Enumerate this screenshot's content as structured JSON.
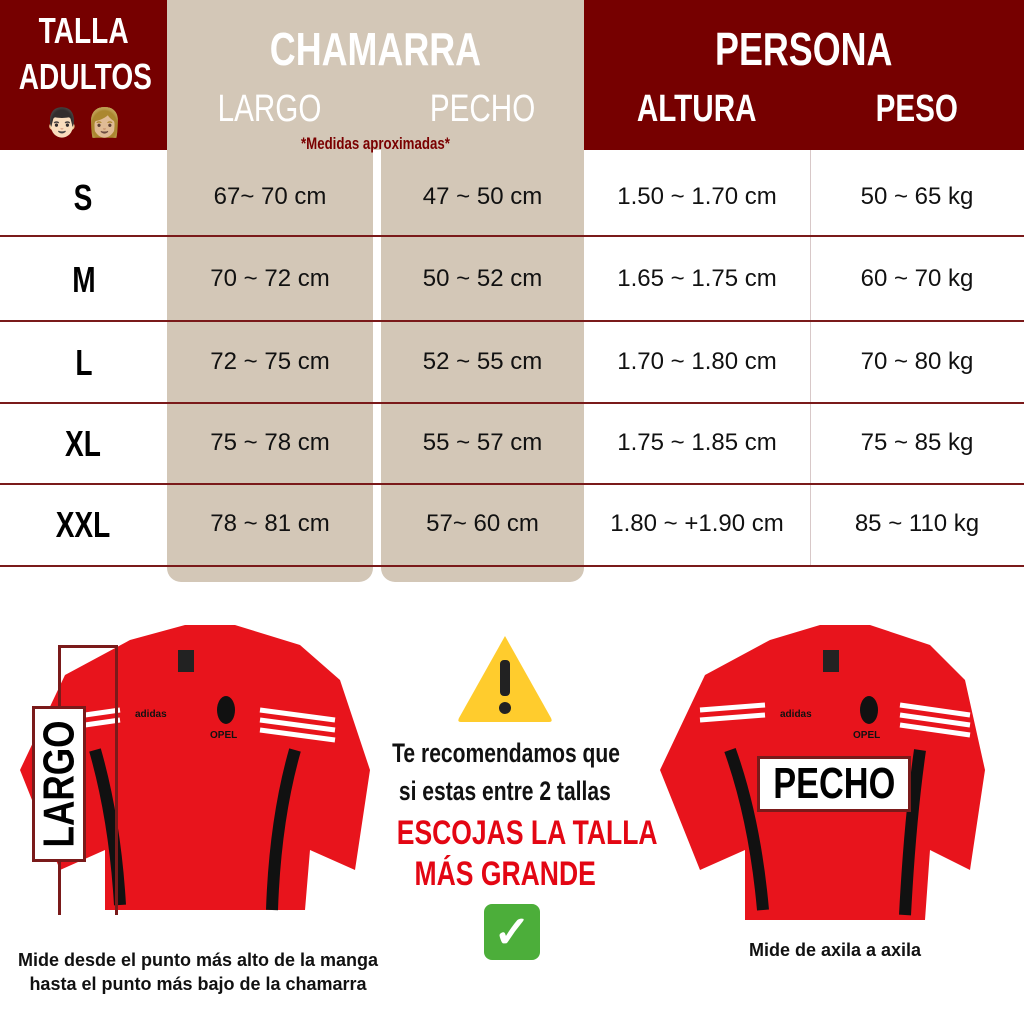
{
  "header": {
    "talla": "TALLA",
    "adultos": "ADULTOS",
    "emojis": "👨🏻 👩🏼",
    "chamarra": "CHAMARRA",
    "largo": "LARGO",
    "pecho": "PECHO",
    "persona": "PERSONA",
    "altura": "ALTURA",
    "peso": "PESO",
    "note": "*Medidas aproximadas*"
  },
  "rows": [
    {
      "size": "S",
      "largo": "67~ 70 cm",
      "pecho": "47 ~ 50 cm",
      "altura": "1.50 ~ 1.70 cm",
      "peso": "50 ~ 65 kg"
    },
    {
      "size": "M",
      "largo": "70 ~ 72 cm",
      "pecho": "50 ~ 52 cm",
      "altura": "1.65 ~ 1.75 cm",
      "peso": "60 ~ 70 kg"
    },
    {
      "size": "L",
      "largo": "72 ~ 75 cm",
      "pecho": "52 ~ 55 cm",
      "altura": "1.70 ~ 1.80 cm",
      "peso": "70 ~ 80 kg"
    },
    {
      "size": "XL",
      "largo": "75 ~ 78 cm",
      "pecho": "55 ~ 57 cm",
      "altura": "1.75 ~ 1.85 cm",
      "peso": "75 ~ 85 kg"
    },
    {
      "size": "XXL",
      "largo": "78 ~ 81 cm",
      "pecho": "57~ 60 cm",
      "altura": "1.80 ~ +1.90 cm",
      "peso": "85 ~ 110 kg"
    }
  ],
  "left_jacket": {
    "label": "LARGO",
    "caption1": "Mide desde el punto más alto de la manga",
    "caption2": "hasta el punto más bajo de la chamarra",
    "brand": "OPEL"
  },
  "right_jacket": {
    "label": "PECHO",
    "caption": "Mide de axila a axila",
    "brand": "OPEL"
  },
  "advice": {
    "line1": "Te recomendamos que",
    "line2": "si estas entre 2 tallas",
    "line3": "ESCOJAS LA TALLA",
    "line4": "MÁS GRANDE",
    "warning_icon": "warning-triangle",
    "check_icon": "check-mark-box"
  },
  "colors": {
    "header": "#760000",
    "beige": "#d3c7b7",
    "red": "#e30613",
    "jacket": "#e8141c"
  }
}
